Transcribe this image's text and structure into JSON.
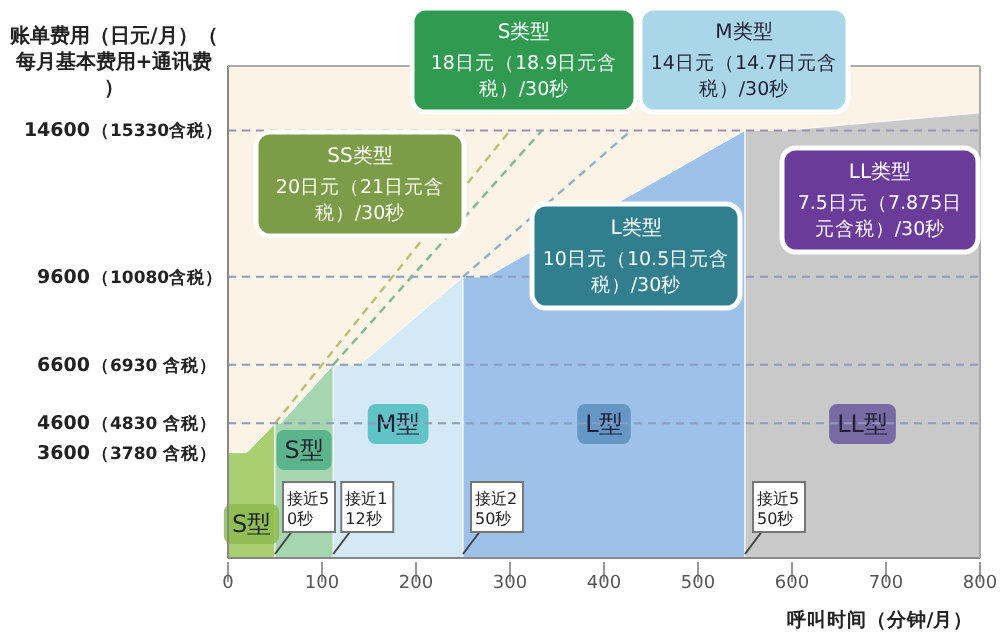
{
  "chart_data": {
    "type": "area",
    "ylabel": "账单费用（日元/月）（每月基本费用+通讯费）",
    "xlabel": "呼叫时间（分钟/月）",
    "xlim": [
      0,
      800
    ],
    "xticks": [
      0,
      100,
      200,
      300,
      400,
      500,
      600,
      700,
      800
    ],
    "ylim": [
      0,
      16800
    ],
    "yticks": [
      3600,
      4600,
      6600,
      9600,
      14600
    ],
    "grid": false,
    "series": [
      {
        "name": "S型",
        "color": "#a9cf72",
        "x": [
          0,
          20,
          50
        ],
        "values": [
          3600,
          3600,
          4600
        ]
      },
      {
        "name": "S型",
        "color": "#a6d6b0",
        "x": [
          50,
          56,
          112
        ],
        "values": [
          4600,
          4600,
          6600
        ]
      },
      {
        "name": "M型",
        "color": "#d3e9f5",
        "x": [
          112,
          140,
          250
        ],
        "values": [
          6600,
          6600,
          9600
        ]
      },
      {
        "name": "L型",
        "color": "#9dc1e8",
        "x": [
          250,
          275,
          550
        ],
        "values": [
          9600,
          9600,
          14600
        ]
      },
      {
        "name": "LL型",
        "color": "#c9c9c9",
        "x": [
          550,
          590,
          800
        ],
        "values": [
          14600,
          14600,
          15200
        ]
      },
      {
        "type": "line",
        "line_style": "dashed",
        "color": "#b8c070",
        "x": [
          50,
          300
        ],
        "values": [
          4600,
          14600
        ]
      },
      {
        "type": "line",
        "line_style": "dashed",
        "color": "#80b890",
        "x": [
          112,
          334
        ],
        "values": [
          6600,
          14600
        ]
      },
      {
        "type": "line",
        "line_style": "dashed",
        "color": "#90b0c8",
        "x": [
          250,
          429
        ],
        "values": [
          9600,
          14600
        ]
      }
    ],
    "ref_lines": [
      {
        "axis": "y",
        "value": 4600,
        "color": "#8c9cc0",
        "line_style": "dashed"
      },
      {
        "axis": "y",
        "value": 6600,
        "color": "#8c9cc0",
        "line_style": "dashed"
      },
      {
        "axis": "y",
        "value": 9600,
        "color": "#8c9cc0",
        "line_style": "dashed"
      },
      {
        "axis": "y",
        "value": 14600,
        "color": "#9a90b8",
        "line_style": "dashed"
      }
    ],
    "annotations": [
      "SS类型",
      "S类型",
      "M类型",
      "L类型",
      "LL类型",
      "20日元（21日元含税）/30秒",
      "18日元（18.9日元含税）/30秒",
      "14日元（14.7日元含税）/30秒",
      "10日元（10.5日元含税）/30秒",
      "7.5日元（7.875日元含税）/30秒",
      "（3780 含税）",
      "（4830 含税）",
      "（6930 含税）",
      "（10080含税）",
      "（15330含税）",
      {
        "text": "接近50秒",
        "x": 50,
        "y": 0
      },
      {
        "text": "接近112秒",
        "x": 112,
        "y": 0
      },
      {
        "text": "接近250秒",
        "x": 250,
        "y": 0
      },
      {
        "text": "接近550秒",
        "x": 550,
        "y": 0
      }
    ]
  }
}
